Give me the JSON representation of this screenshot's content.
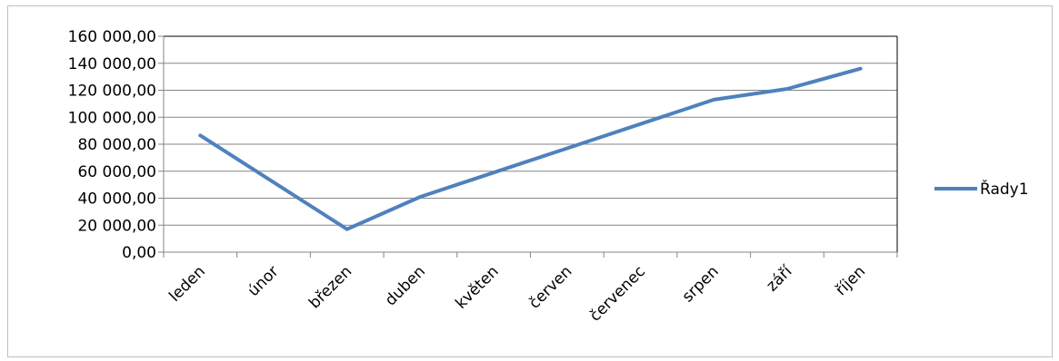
{
  "chart_data": {
    "type": "line",
    "categories": [
      "leden",
      "únor",
      "březen",
      "duben",
      "květen",
      "červen",
      "červenec",
      "srpen",
      "září",
      "říjen"
    ],
    "series": [
      {
        "name": "Řady1",
        "color": "#4F81BD",
        "values": [
          86500,
          null,
          17000,
          41000,
          59000,
          77000,
          95000,
          113000,
          121000,
          136000
        ]
      }
    ],
    "ylim": [
      0,
      160000
    ],
    "yticks": [
      0,
      20000,
      40000,
      60000,
      80000,
      100000,
      120000,
      140000,
      160000
    ],
    "ytick_labels": [
      "0,00",
      "20 000,00",
      "40 000,00",
      "60 000,00",
      "80 000,00",
      "100 000,00",
      "120 000,00",
      "140 000,00",
      "160 000,00"
    ],
    "grid": true,
    "legend": "right"
  }
}
